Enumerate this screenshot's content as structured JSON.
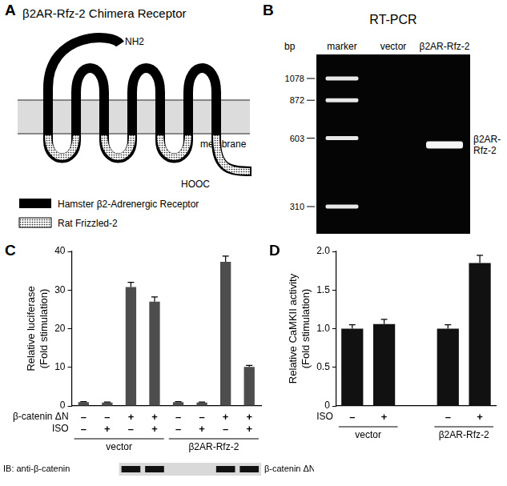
{
  "panels": [
    {
      "letter": "A",
      "title": "β2AR-Rfz-2 Chimera Receptor",
      "labels": {
        "n_terminus": "NH2",
        "c_terminus": "HOOC",
        "membrane": "membrane"
      },
      "legend": [
        {
          "label": "Hamster β2-Adrenergic Receptor",
          "fill": "solid"
        },
        {
          "label": "Rat Frizzled-2",
          "fill": "dotted"
        }
      ]
    },
    {
      "letter": "B",
      "title": "RT-PCR",
      "lanes": [
        "marker",
        "vector",
        "β2AR-Rfz-2"
      ],
      "size_unit": "bp",
      "marker_sizes": [
        1078,
        872,
        603,
        310
      ],
      "band_label": "β2AR-Rfz-2",
      "product_band_lane": "β2AR-Rfz-2"
    }
  ],
  "chart_data": [
    {
      "panel": "C",
      "type": "bar",
      "ylabel": [
        "Relative luciferase",
        "(Fold stimulation)"
      ],
      "categories": [
        [
          "–",
          "–"
        ],
        [
          "–",
          "+"
        ],
        [
          "+",
          "–"
        ],
        [
          "+",
          "+"
        ],
        [
          "–",
          "–"
        ],
        [
          "–",
          "+"
        ],
        [
          "+",
          "–"
        ],
        [
          "+",
          "+"
        ]
      ],
      "row_labels": [
        "β-catenin ΔN",
        "ISO"
      ],
      "category_groups": [
        "vector",
        "vector",
        "vector",
        "vector",
        "β2AR-Rfz-2",
        "β2AR-Rfz-2",
        "β2AR-Rfz-2",
        "β2AR-Rfz-2"
      ],
      "values": [
        1.0,
        0.9,
        30.8,
        27.0,
        1.0,
        0.9,
        37.3,
        10.1
      ],
      "errors": [
        0.1,
        0.1,
        1.2,
        1.2,
        0.1,
        0.1,
        1.5,
        0.4
      ],
      "color": "#4d4d4d",
      "ylim": [
        0,
        40
      ],
      "yticks": [
        0,
        10,
        20,
        30,
        40
      ],
      "grid": false,
      "blot": {
        "label": "IB: anti-β-catenin",
        "band_label": "β-catenin ΔN",
        "bands": [
          false,
          false,
          true,
          true,
          false,
          false,
          true,
          true
        ]
      }
    },
    {
      "panel": "D",
      "type": "bar",
      "ylabel": [
        "Relative CaMKII activity",
        "(Fold stimulation)"
      ],
      "categories": [
        "–",
        "+",
        null,
        "–",
        "+"
      ],
      "row_labels": [
        "ISO"
      ],
      "category_groups": [
        "vector",
        "vector",
        null,
        "β2AR-Rfz-2",
        "β2AR-Rfz-2"
      ],
      "values": [
        1.0,
        1.06,
        null,
        1.0,
        1.85
      ],
      "errors": [
        0.05,
        0.06,
        null,
        0.05,
        0.1
      ],
      "color": "#111111",
      "ylim": [
        0,
        2
      ],
      "yticks": [
        0,
        0.5,
        {
          "value": 1,
          "label": "1.0"
        },
        1.5,
        {
          "value": 2,
          "label": "2.0"
        }
      ],
      "grid": false
    }
  ]
}
